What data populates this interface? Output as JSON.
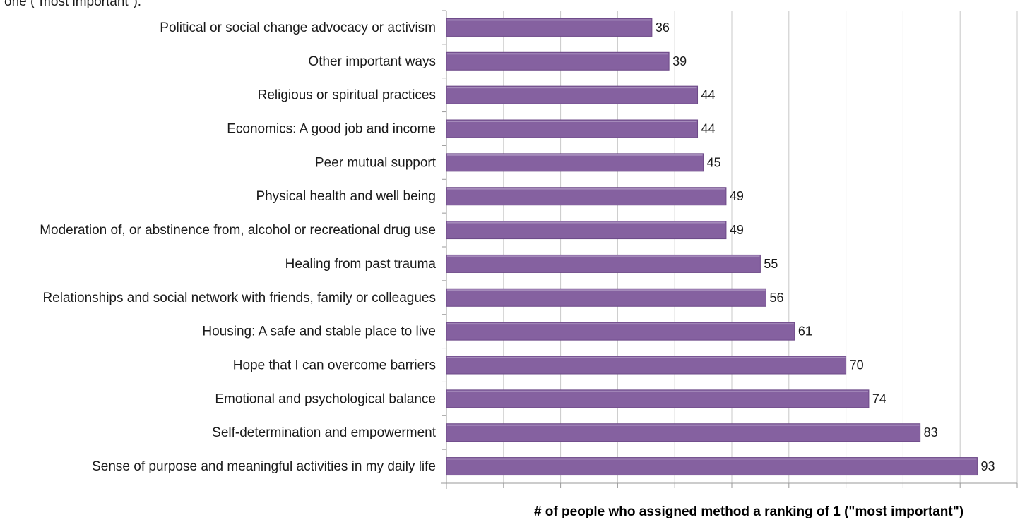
{
  "chart_data": {
    "type": "bar",
    "orientation": "horizontal",
    "title": "",
    "top_fragment": "one (\"most important\").",
    "xlabel": "# of people who assigned method a ranking of 1 (\"most important\")",
    "ylabel": "",
    "xlim": [
      0,
      100
    ],
    "grid": true,
    "legend": "none",
    "bar_color": "#8561A0",
    "categories": [
      "Political or social change advocacy or activism",
      "Other important ways",
      "Religious or spiritual practices",
      "Economics: A good job and income",
      "Peer mutual support",
      "Physical health and well being",
      "Moderation of, or abstinence from, alcohol or recreational drug use",
      "Healing from past trauma",
      "Relationships and social network with friends, family or colleagues",
      "Housing: A safe and stable place to live",
      "Hope that I can overcome barriers",
      "Emotional and psychological balance",
      "Self-determination and empowerment",
      "Sense of purpose and meaningful activities in my daily life"
    ],
    "values": [
      36,
      39,
      44,
      44,
      45,
      49,
      49,
      55,
      56,
      61,
      70,
      74,
      83,
      93
    ]
  }
}
